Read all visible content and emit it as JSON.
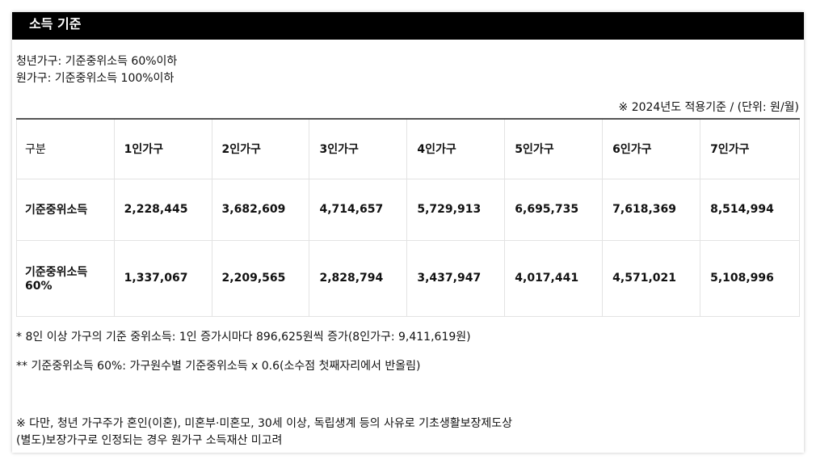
{
  "header": {
    "title": "소득 기준"
  },
  "criteria": {
    "youth": "청년가구: 기준중위소득 60%이하",
    "origin": "원가구: 기준중위소득 100%이하"
  },
  "unit_note": "※ 2024년도 적용기준 / (단위: 원/월)",
  "table": {
    "corner": "구분",
    "columns": [
      "1인가구",
      "2인가구",
      "3인가구",
      "4인가구",
      "5인가구",
      "6인가구",
      "7인가구"
    ],
    "rows": [
      {
        "label": "기준중위소득",
        "values": [
          "2,228,445",
          "3,682,609",
          "4,714,657",
          "5,729,913",
          "6,695,735",
          "7,618,369",
          "8,514,994"
        ]
      },
      {
        "label": "기준중위소득 60%",
        "values": [
          "1,337,067",
          "2,209,565",
          "2,828,794",
          "3,437,947",
          "4,017,441",
          "4,571,021",
          "5,108,996"
        ]
      }
    ]
  },
  "notes": {
    "note1": "* 8인 이상 가구의 기준 중위소득: 1인 증가시마다 896,625원씩 증가(8인가구: 9,411,619원)",
    "note2": "** 기준중위소득 60%: 가구원수별 기준중위소득 x 0.6(소수점 첫째자리에서 반올림)",
    "note3_line1": "※ 다만, 청년 가구주가 혼인(이혼), 미혼부·미혼모, 30세 이상, 독립생계 등의 사유로 기초생활보장제도상",
    "note3_line2": "(별도)보장가구로 인정되는 경우 원가구 소득재산 미고려"
  }
}
